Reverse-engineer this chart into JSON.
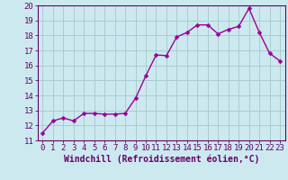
{
  "x": [
    0,
    1,
    2,
    3,
    4,
    5,
    6,
    7,
    8,
    9,
    10,
    11,
    12,
    13,
    14,
    15,
    16,
    17,
    18,
    19,
    20,
    21,
    22,
    23
  ],
  "y": [
    11.5,
    12.3,
    12.5,
    12.3,
    12.8,
    12.8,
    12.75,
    12.75,
    12.8,
    13.8,
    15.3,
    16.7,
    16.65,
    17.9,
    18.2,
    18.7,
    18.7,
    18.1,
    18.4,
    18.6,
    19.8,
    18.2,
    16.8,
    16.3
  ],
  "line_color": "#990099",
  "marker": "D",
  "marker_size": 2.5,
  "linewidth": 1.0,
  "bg_color": "#cce9f0",
  "grid_color": "#aacccc",
  "xlabel": "Windchill (Refroidissement éolien,°C)",
  "xlim": [
    -0.5,
    23.5
  ],
  "ylim": [
    11,
    20
  ],
  "yticks": [
    11,
    12,
    13,
    14,
    15,
    16,
    17,
    18,
    19,
    20
  ],
  "xticks": [
    0,
    1,
    2,
    3,
    4,
    5,
    6,
    7,
    8,
    9,
    10,
    11,
    12,
    13,
    14,
    15,
    16,
    17,
    18,
    19,
    20,
    21,
    22,
    23
  ],
  "xlabel_fontsize": 7.0,
  "tick_fontsize": 6.5,
  "axis_color": "#660066"
}
